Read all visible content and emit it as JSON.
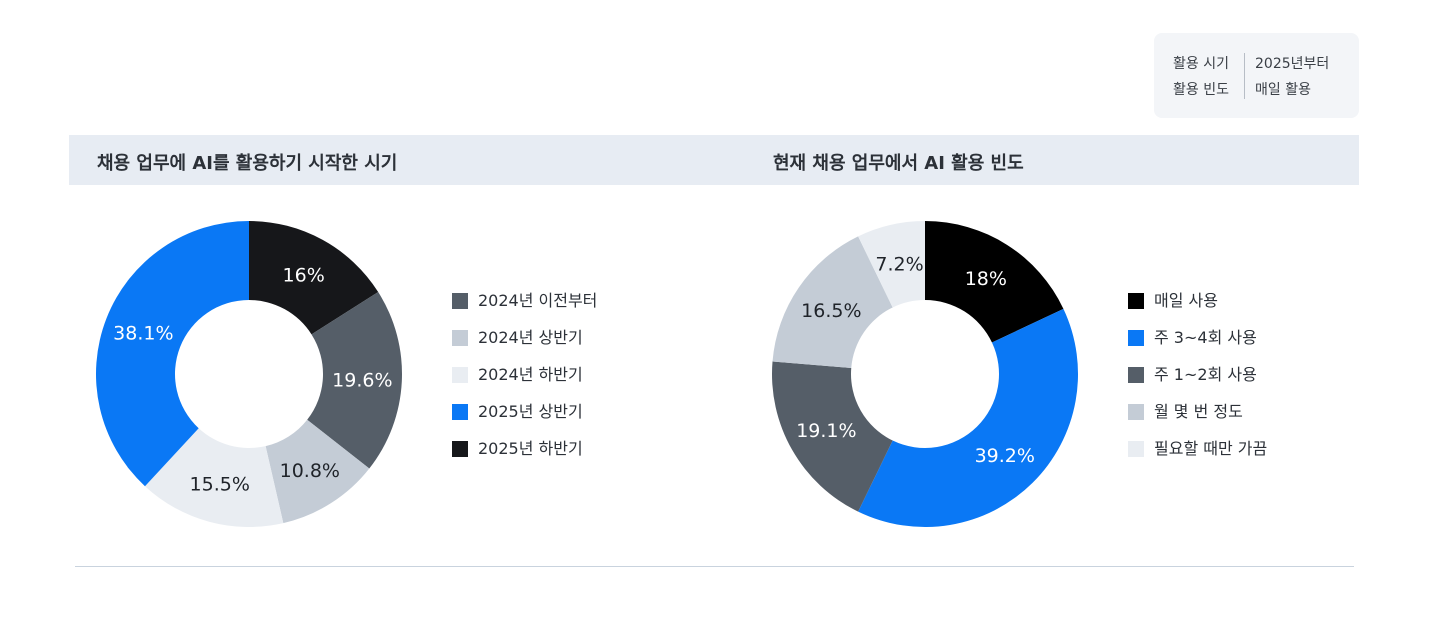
{
  "info_box": {
    "rows": [
      {
        "key": "활용 시기",
        "value": "2025년부터"
      },
      {
        "key": "활용 빈도",
        "value": "매일 활용"
      }
    ]
  },
  "chart_data": [
    {
      "type": "pie",
      "title": "채용 업무에 AI를 활용하기 시작한 시기",
      "donut": true,
      "legend_position": "right",
      "slices": [
        {
          "label": "2025년 하반기",
          "value": 16,
          "value_label": "16%",
          "color": "#16171a",
          "text_color": "#ffffff"
        },
        {
          "label": "2024년 이전부터",
          "value": 19.6,
          "value_label": "19.6%",
          "color": "#555e68",
          "text_color": "#ffffff"
        },
        {
          "label": "2024년 상반기",
          "value": 10.8,
          "value_label": "10.8%",
          "color": "#c4ccd6",
          "text_color": "#1f2329"
        },
        {
          "label": "2024년 하반기",
          "value": 15.5,
          "value_label": "15.5%",
          "color": "#e9edf2",
          "text_color": "#1f2329"
        },
        {
          "label": "2025년 상반기",
          "value": 38.1,
          "value_label": "38.1%",
          "color": "#0a78f5",
          "text_color": "#ffffff"
        }
      ],
      "legend": [
        {
          "label": "2024년 이전부터",
          "color": "#555e68"
        },
        {
          "label": "2024년 상반기",
          "color": "#c4ccd6"
        },
        {
          "label": "2024년 하반기",
          "color": "#e9edf2"
        },
        {
          "label": "2025년 상반기",
          "color": "#0a78f5"
        },
        {
          "label": "2025년 하반기",
          "color": "#16171a"
        }
      ]
    },
    {
      "type": "pie",
      "title": "현재 채용 업무에서 AI 활용 빈도",
      "donut": true,
      "legend_position": "right",
      "slices": [
        {
          "label": "매일 사용",
          "value": 18,
          "value_label": "18%",
          "color": "#000000",
          "text_color": "#ffffff"
        },
        {
          "label": "주 3~4회 사용",
          "value": 39.2,
          "value_label": "39.2%",
          "color": "#0a78f5",
          "text_color": "#ffffff"
        },
        {
          "label": "주 1~2회 사용",
          "value": 19.1,
          "value_label": "19.1%",
          "color": "#555e68",
          "text_color": "#ffffff"
        },
        {
          "label": "월 몇 번 정도",
          "value": 16.5,
          "value_label": "16.5%",
          "color": "#c4ccd6",
          "text_color": "#1f2329"
        },
        {
          "label": "필요할 때만 가끔",
          "value": 7.2,
          "value_label": "7.2%",
          "color": "#e9edf2",
          "text_color": "#1f2329"
        }
      ],
      "legend": [
        {
          "label": "매일 사용",
          "color": "#000000"
        },
        {
          "label": "주 3~4회 사용",
          "color": "#0a78f5"
        },
        {
          "label": "주 1~2회 사용",
          "color": "#555e68"
        },
        {
          "label": "월 몇 번 정도",
          "color": "#c4ccd6"
        },
        {
          "label": "필요할 때만 가끔",
          "color": "#e9edf2"
        }
      ]
    }
  ]
}
